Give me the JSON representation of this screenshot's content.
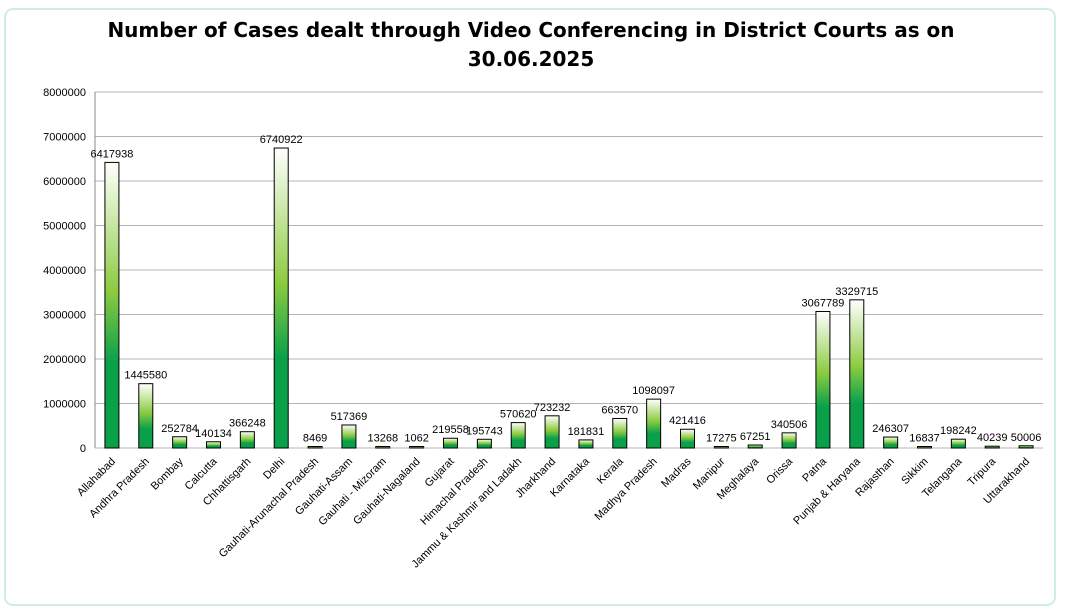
{
  "chart_data": {
    "type": "bar",
    "title": "Number of Cases dealt through Video Conferencing in District Courts as on",
    "title_line2": "30.06.2025",
    "xlabel": "",
    "ylabel": "",
    "ylim": [
      0,
      8000000
    ],
    "yticks": [
      "0",
      "1000000",
      "2000000",
      "3000000",
      "4000000",
      "5000000",
      "6000000",
      "7000000",
      "8000000"
    ],
    "grid": true,
    "legend": "none",
    "categories": [
      "Allahabad",
      "Andhra Pradesh",
      "Bombay",
      "Calcutta",
      "Chhattisgarh",
      "Delhi",
      "Gauhati-Arunachal Pradesh",
      "Gauhati-Assam",
      "Gauhati - Mizoram",
      "Gauhati-Nagaland",
      "Gujarat",
      "Himachal Pradesh",
      "Jammu & Kashmir and Ladakh",
      "Jharkhand",
      "Karnataka",
      "Kerala",
      "Madhya Pradesh",
      "Madras",
      "Manipur",
      "Meghalaya",
      "Orissa",
      "Patna",
      "Punjab & Haryana",
      "Rajasthan",
      "Sikkim",
      "Telangana",
      "Tripura",
      "Uttarakhand"
    ],
    "values": [
      6417938,
      1445580,
      252784,
      140134,
      366248,
      6740922,
      8469,
      517369,
      13268,
      1062,
      219558,
      195743,
      570620,
      723232,
      181831,
      663570,
      1098097,
      421416,
      17275,
      67251,
      340506,
      3067789,
      3329715,
      246307,
      16837,
      198242,
      40239,
      50006
    ],
    "data_labels": [
      "6417938",
      "1445580",
      "252784",
      "140134",
      "366248",
      "6740922",
      "8469",
      "517369",
      "13268",
      "1062",
      "219558",
      "195743",
      "570620",
      "723232",
      "181831",
      "663570",
      "1098097",
      "421416",
      "17275",
      "67251",
      "340506",
      "3067789",
      "3329715",
      "246307",
      "16837",
      "198242",
      "40239",
      "50006"
    ],
    "colors": {
      "bar_dark": "#0aa04a",
      "bar_mid": "#8ccb40",
      "bar_light": "#ffffff",
      "grid": "#b4b4b4",
      "frame": "#cfeede"
    }
  }
}
